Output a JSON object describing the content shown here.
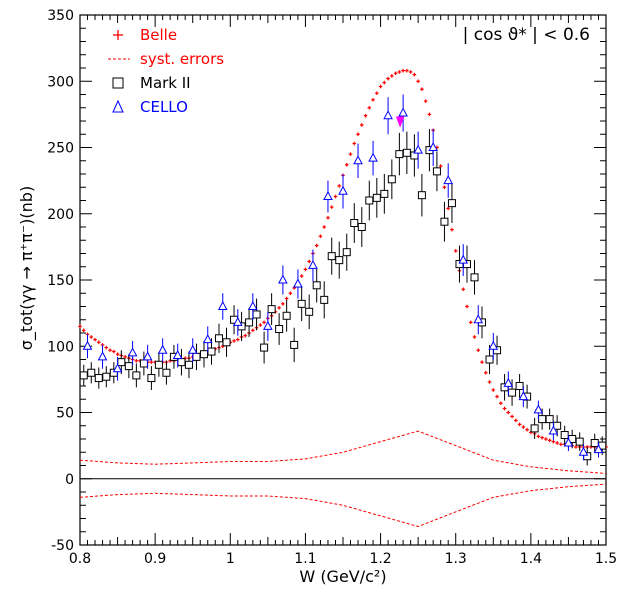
{
  "chart_data": {
    "type": "scatter",
    "title": "",
    "xlabel": "W (GeV/c²)",
    "ylabel": "σ_tot(γγ → π⁺π⁻)(nb)",
    "xlim": [
      0.8,
      1.5
    ],
    "ylim": [
      -50,
      350
    ],
    "x_ticks": [
      0.8,
      0.9,
      1,
      1.1,
      1.2,
      1.3,
      1.4,
      1.5
    ],
    "x_tick_labels": [
      "0.8",
      "0.9",
      "1",
      "1.1",
      "1.2",
      "1.3",
      "1.4",
      "1.5"
    ],
    "y_ticks": [
      -50,
      0,
      50,
      100,
      150,
      200,
      250,
      300,
      350
    ],
    "y_tick_labels": [
      "-50",
      "0",
      "50",
      "100",
      "150",
      "200",
      "250",
      "300",
      "350"
    ],
    "zero_line": true,
    "annotation": "| cos ϑ* | < 0.6",
    "legend": {
      "placement": "top-left",
      "entries": [
        {
          "symbol": "+",
          "label": "Belle",
          "color": "#ff0000"
        },
        {
          "symbol": "dashed-line",
          "label": "syst. errors",
          "color": "#ff0000"
        },
        {
          "symbol": "square",
          "label": "Mark II",
          "color": "#000000"
        },
        {
          "symbol": "triangle",
          "label": "CELLO",
          "color": "#0000ff"
        }
      ]
    },
    "series": [
      {
        "name": "Belle",
        "marker": "cross",
        "color": "#ff0000",
        "x": [
          0.8,
          0.805,
          0.81,
          0.815,
          0.82,
          0.825,
          0.83,
          0.835,
          0.84,
          0.845,
          0.85,
          0.855,
          0.86,
          0.865,
          0.87,
          0.875,
          0.88,
          0.885,
          0.89,
          0.895,
          0.9,
          0.905,
          0.91,
          0.915,
          0.92,
          0.925,
          0.93,
          0.935,
          0.94,
          0.945,
          0.95,
          0.955,
          0.96,
          0.965,
          0.97,
          0.975,
          0.98,
          0.985,
          0.99,
          0.995,
          1.0,
          1.005,
          1.01,
          1.015,
          1.02,
          1.025,
          1.03,
          1.035,
          1.04,
          1.045,
          1.05,
          1.055,
          1.06,
          1.065,
          1.07,
          1.075,
          1.08,
          1.085,
          1.09,
          1.095,
          1.1,
          1.105,
          1.11,
          1.115,
          1.12,
          1.125,
          1.13,
          1.135,
          1.14,
          1.145,
          1.15,
          1.155,
          1.16,
          1.165,
          1.17,
          1.175,
          1.18,
          1.185,
          1.19,
          1.195,
          1.2,
          1.205,
          1.21,
          1.215,
          1.22,
          1.225,
          1.23,
          1.235,
          1.24,
          1.245,
          1.25,
          1.255,
          1.26,
          1.265,
          1.27,
          1.275,
          1.28,
          1.285,
          1.29,
          1.295,
          1.3,
          1.305,
          1.31,
          1.315,
          1.32,
          1.325,
          1.33,
          1.335,
          1.34,
          1.345,
          1.35,
          1.355,
          1.36,
          1.365,
          1.37,
          1.375,
          1.38,
          1.385,
          1.39,
          1.395,
          1.4,
          1.405,
          1.41,
          1.415,
          1.42,
          1.425,
          1.43,
          1.435,
          1.44,
          1.445,
          1.45,
          1.455,
          1.46,
          1.465,
          1.47,
          1.475,
          1.48,
          1.485,
          1.49,
          1.495,
          1.5
        ],
        "y": [
          115,
          112,
          109,
          107,
          105,
          103,
          101,
          99,
          97,
          96,
          94,
          93,
          92,
          91,
          90,
          89,
          89,
          88,
          88,
          88,
          88,
          88,
          88,
          88,
          89,
          89,
          90,
          90,
          91,
          91,
          92,
          93,
          94,
          95,
          96,
          97,
          98,
          99,
          100,
          101,
          103,
          104,
          105,
          107,
          108,
          110,
          112,
          114,
          116,
          118,
          121,
          123,
          126,
          129,
          132,
          136,
          140,
          144,
          148,
          153,
          158,
          164,
          170,
          176,
          183,
          190,
          197,
          205,
          213,
          221,
          229,
          237,
          245,
          253,
          260,
          267,
          274,
          280,
          286,
          291,
          296,
          299,
          302,
          304,
          306,
          307,
          308,
          308,
          307,
          305,
          300,
          294,
          285,
          275,
          263,
          250,
          236,
          220,
          204,
          188,
          172,
          157,
          143,
          130,
          118,
          107,
          97,
          88,
          80,
          73,
          67,
          62,
          57,
          53,
          50,
          47,
          44,
          41,
          39,
          37,
          35,
          34,
          32,
          31,
          30,
          29,
          28,
          27,
          26,
          26,
          25,
          25,
          24,
          24,
          24,
          24,
          24,
          24,
          24,
          24,
          24
        ]
      },
      {
        "name": "syst. errors",
        "style": "dashed",
        "color": "#ff0000",
        "x": [
          0.8,
          0.85,
          0.9,
          0.95,
          1.0,
          1.05,
          1.1,
          1.15,
          1.2,
          1.25,
          1.3,
          1.35,
          1.4,
          1.45,
          1.5
        ],
        "y_upper": [
          14,
          12,
          11,
          12,
          13,
          13,
          15,
          20,
          28,
          36,
          25,
          14,
          9,
          6,
          4
        ],
        "y_lower": [
          -14,
          -12,
          -11,
          -12,
          -13,
          -13,
          -15,
          -20,
          -28,
          -36,
          -25,
          -14,
          -9,
          -6,
          -4
        ]
      },
      {
        "name": "Mark II",
        "marker": "square",
        "color": "#000000",
        "x": [
          0.805,
          0.815,
          0.825,
          0.835,
          0.845,
          0.855,
          0.865,
          0.875,
          0.885,
          0.895,
          0.905,
          0.915,
          0.925,
          0.935,
          0.945,
          0.955,
          0.965,
          0.975,
          0.985,
          0.995,
          1.005,
          1.015,
          1.025,
          1.035,
          1.045,
          1.055,
          1.065,
          1.075,
          1.085,
          1.095,
          1.105,
          1.115,
          1.125,
          1.135,
          1.145,
          1.155,
          1.165,
          1.175,
          1.185,
          1.195,
          1.205,
          1.215,
          1.225,
          1.235,
          1.245,
          1.255,
          1.265,
          1.275,
          1.285,
          1.295,
          1.305,
          1.315,
          1.325,
          1.335,
          1.345,
          1.355,
          1.365,
          1.375,
          1.385,
          1.395,
          1.405,
          1.415,
          1.425,
          1.435,
          1.445,
          1.455,
          1.465,
          1.475,
          1.485,
          1.495
        ],
        "y": [
          78,
          80,
          76,
          77,
          80,
          88,
          85,
          78,
          87,
          76,
          86,
          80,
          92,
          88,
          86,
          92,
          94,
          96,
          106,
          103,
          120,
          115,
          118,
          124,
          99,
          128,
          113,
          123,
          101,
          132,
          126,
          146,
          135,
          168,
          165,
          171,
          193,
          190,
          210,
          212,
          215,
          226,
          245,
          246,
          244,
          214,
          248,
          232,
          194,
          208,
          162,
          162,
          152,
          118,
          90,
          97,
          69,
          65,
          70,
          62,
          38,
          45,
          45,
          40,
          33,
          30,
          28,
          17,
          27,
          25
        ],
        "err": [
          8,
          8,
          8,
          8,
          8,
          9,
          9,
          9,
          9,
          9,
          9,
          9,
          9,
          10,
          10,
          10,
          10,
          10,
          11,
          11,
          11,
          11,
          11,
          12,
          12,
          12,
          12,
          12,
          13,
          13,
          13,
          13,
          14,
          14,
          14,
          14,
          15,
          15,
          15,
          15,
          15,
          15,
          16,
          16,
          16,
          16,
          16,
          15,
          15,
          15,
          14,
          14,
          13,
          12,
          11,
          11,
          10,
          10,
          9,
          9,
          8,
          8,
          8,
          8,
          7,
          7,
          7,
          7,
          7,
          7
        ]
      },
      {
        "name": "CELLO",
        "marker": "triangle",
        "color": "#0000ff",
        "x": [
          0.81,
          0.83,
          0.85,
          0.87,
          0.89,
          0.91,
          0.93,
          0.95,
          0.97,
          0.99,
          1.01,
          1.03,
          1.05,
          1.07,
          1.09,
          1.11,
          1.13,
          1.15,
          1.17,
          1.19,
          1.21,
          1.23,
          1.25,
          1.27,
          1.29,
          1.31,
          1.33,
          1.35,
          1.37,
          1.39,
          1.41,
          1.43,
          1.45,
          1.47,
          1.49
        ],
        "y": [
          100,
          92,
          83,
          95,
          92,
          97,
          93,
          97,
          105,
          130,
          118,
          130,
          115,
          150,
          147,
          161,
          213,
          217,
          240,
          242,
          274,
          276,
          248,
          250,
          225,
          165,
          120,
          100,
          72,
          62,
          52,
          36,
          27,
          20,
          22
        ],
        "err": [
          9,
          9,
          9,
          9,
          9,
          9,
          9,
          9,
          10,
          10,
          10,
          10,
          11,
          11,
          11,
          12,
          12,
          13,
          13,
          13,
          14,
          14,
          14,
          14,
          13,
          12,
          11,
          10,
          9,
          8,
          7,
          7,
          6,
          6,
          6
        ]
      }
    ]
  },
  "colors": {
    "belle": "#ff0000",
    "mark2": "#000000",
    "cello": "#0000ff",
    "highlight": "#ff00ff"
  },
  "icons": {
    "belle_marker": "cross",
    "mark2_marker": "open-square",
    "cello_marker": "open-triangle"
  }
}
